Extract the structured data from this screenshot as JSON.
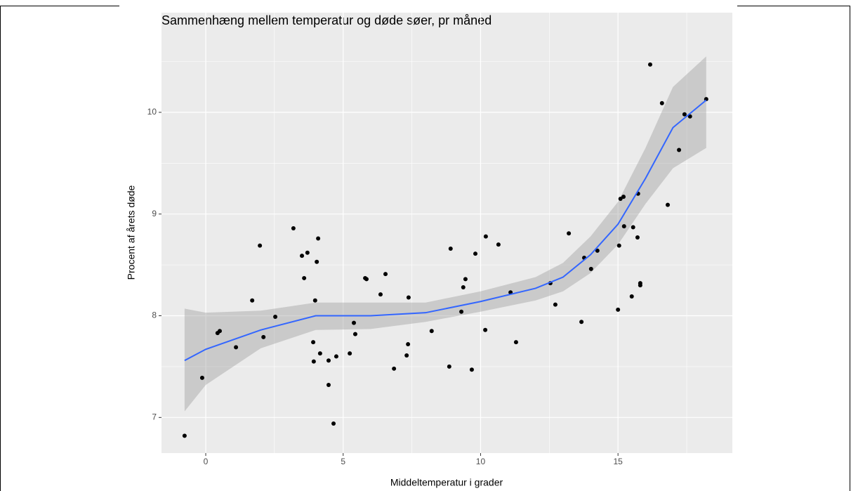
{
  "chart_data": {
    "type": "scatter",
    "title": "Sammenhæng mellem temperatur og døde søer, pr måned",
    "x_label": "Middeltemperatur i grader",
    "y_label": "Procent af årets døde",
    "xlim": [
      -1.61,
      19.16
    ],
    "ylim": [
      6.65,
      10.98
    ],
    "xticks": [
      0,
      5,
      10,
      15
    ],
    "yticks": [
      7,
      8,
      9,
      10
    ],
    "x_minor_breaks": [
      2.5,
      7.5,
      12.5,
      17.5
    ],
    "y_minor_breaks": [
      7.5,
      8.5,
      9.5,
      10.5
    ],
    "grid": true,
    "point_color": "#000000",
    "x": [
      -0.77,
      -0.13,
      0.43,
      0.51,
      1.1,
      1.69,
      1.97,
      2.1,
      2.53,
      3.19,
      3.5,
      3.58,
      3.7,
      3.91,
      3.93,
      3.98,
      4.04,
      4.09,
      4.16,
      4.47,
      4.47,
      4.65,
      4.75,
      5.24,
      5.39,
      5.44,
      5.8,
      5.85,
      6.36,
      6.54,
      6.85,
      7.31,
      7.36,
      7.38,
      8.22,
      8.86,
      8.91,
      9.3,
      9.37,
      9.45,
      9.68,
      9.81,
      10.17,
      10.19,
      10.65,
      11.09,
      11.29,
      12.54,
      12.72,
      13.21,
      13.67,
      13.77,
      14.02,
      14.25,
      15.0,
      15.04,
      15.09,
      15.2,
      15.22,
      15.5,
      15.55,
      15.71,
      15.73,
      15.81,
      15.81,
      16.17,
      16.6,
      16.81,
      17.22,
      17.42,
      17.62,
      18.21
    ],
    "y": [
      6.82,
      7.39,
      7.83,
      7.85,
      7.69,
      8.15,
      8.69,
      7.79,
      7.99,
      8.86,
      8.59,
      8.37,
      8.62,
      7.74,
      7.55,
      8.15,
      8.53,
      8.76,
      7.63,
      7.56,
      7.32,
      6.94,
      7.6,
      7.63,
      7.93,
      7.82,
      8.37,
      8.36,
      8.21,
      8.41,
      7.48,
      7.61,
      7.72,
      8.18,
      7.85,
      7.5,
      8.66,
      8.04,
      8.28,
      8.36,
      7.47,
      8.61,
      7.86,
      8.78,
      8.7,
      8.23,
      7.74,
      8.32,
      8.11,
      8.81,
      7.94,
      8.57,
      8.46,
      8.64,
      8.06,
      8.69,
      9.15,
      9.17,
      8.88,
      8.19,
      8.87,
      8.77,
      9.2,
      8.3,
      8.32,
      10.47,
      10.09,
      9.09,
      9.63,
      9.98,
      9.96,
      10.13
    ],
    "smooth": {
      "color": "#3366ff",
      "band_color": "#999999",
      "x": [
        -0.77,
        0,
        2,
        4,
        6,
        8,
        10,
        12,
        13,
        14,
        15,
        16,
        17,
        18.21
      ],
      "y": [
        7.56,
        7.67,
        7.86,
        8.0,
        8.0,
        8.03,
        8.14,
        8.27,
        8.38,
        8.6,
        8.9,
        9.35,
        9.85,
        10.12
      ],
      "lower": [
        7.06,
        7.32,
        7.68,
        7.86,
        7.87,
        7.94,
        8.04,
        8.15,
        8.24,
        8.42,
        8.7,
        9.1,
        9.45,
        9.65
      ],
      "upper": [
        8.07,
        8.03,
        8.05,
        8.13,
        8.13,
        8.13,
        8.24,
        8.38,
        8.52,
        8.78,
        9.12,
        9.65,
        10.25,
        10.55
      ]
    }
  }
}
